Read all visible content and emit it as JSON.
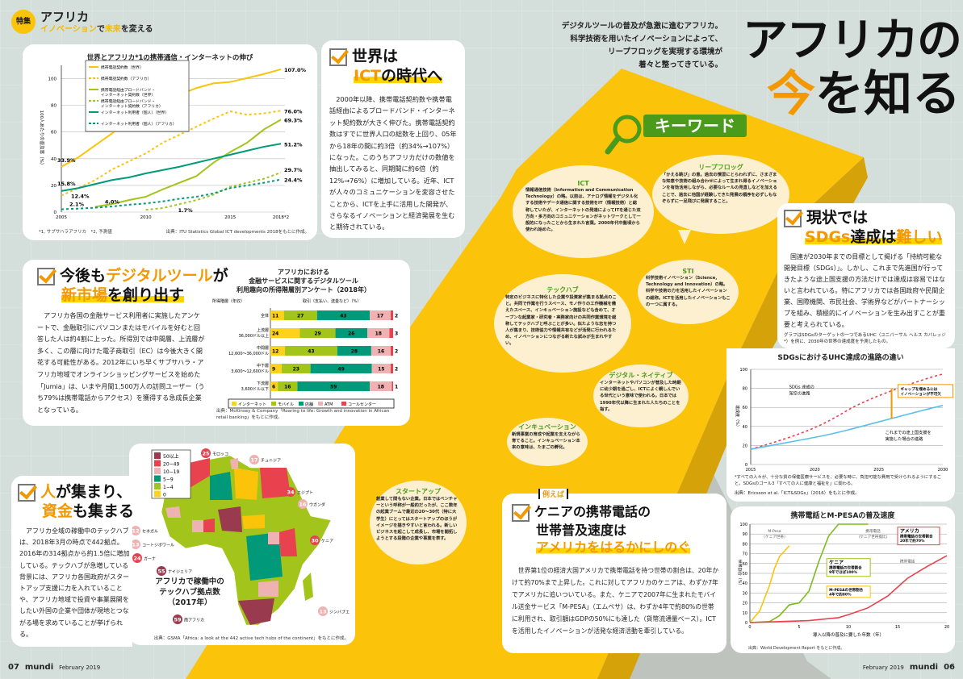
{
  "header": {
    "badge": "特集",
    "title": "アフリカ",
    "subtitle_part1": "イノベーション",
    "subtitle_part2": "で",
    "subtitle_part3": "未来",
    "subtitle_part4": "を変える"
  },
  "hero": {
    "lead_lines": [
      "デジタルツールの普及が急激に進むアフリカ。",
      "科学技術を用いたイノベーションによって、",
      "リープフロッグを実現する環境が",
      "着々と整ってきている。"
    ],
    "title_line1": "アフリカの",
    "title_accent": "今",
    "title_line2": "を知る"
  },
  "keyword": {
    "label": "キーワード"
  },
  "bubbles": [
    {
      "title": "ICT",
      "body": "情報通信技術（Information and Communication Technology）の略。以前は、アナログ情報をデジタル化する技術やデータ通信に関する技術をIT（情報技術）と総称していたが、インターネットの発達によってITを通じた双方向・多方向のコミュニケーションがネットワークとして一般的になったことから生まれた言葉。2000年代中盤頃から使われ始めた。"
    },
    {
      "title": "リープフロッグ",
      "body": "「かえる跳び」の意。過去の慣習にとらわれずに、さまざまな知恵や技術の組み合わせによって生まれ得るイノベーションを有効活用しながら、必要なルールの見直しなどを加えることで、過去に他国が経験してきた発展の順序を必ずしもなぞらずに一足飛びに発展すること。"
    },
    {
      "title": "STI",
      "body": "科学技術イノベーション（Science, Technology and Innovation）の略。科学や技術の力を活用したイノベーションの総称。ICTを活用したイノベーションもこの一つに属する。"
    },
    {
      "title": "テックハブ",
      "body": "特定のビジネスに特化した企業や投資家が集まる拠点のこと。共同で作業を行うスペース、モノ作りの工作機械を備えたスペース、インキュベーション施設なども含めて、オープンな起業家・研究者・実務家向けの共同作業環境を総称してテックハブと呼ぶことが多い。似たような志を持つ人が集まり、技術協力や情報共有などが活発に行われるため、イノベーションにつながる新たな試みが生まれやすい。"
    },
    {
      "title": "デジタル・ネイティブ",
      "body": "インターネットやパソコンが普及した時期に幼少期を過ごし、ICTによく親しんでいる世代という意味で使われる。日本では1990年代以降に生まれた人たちのことを指す。"
    },
    {
      "title": "インキュベーション",
      "body": "新規事業の育成や起業を支えながら育てること。インキュベーション本来の意味は、たまごの孵化。"
    },
    {
      "title": "スタートアップ",
      "body": "創業して間もない企業。日本ではベンチャーという呼称が一般的だったが、ここ数年の起業ブームで最近の20〜30代（特に大学生）にとってはスタートアップのほうがイメージを描きやすいと言われる。新しいビジネスを起こして成長し、市場を開拓しようとする段階の企業や事業を表す。"
    }
  ],
  "sec_ict": {
    "title1": "世界は",
    "title_hl": "ICT",
    "title2": "の時代へ",
    "body": "2000年以降、携帯電話契約数や携帯電話経由によるブロードバンド・インターネット契約数が大きく伸びた。携帯電話契約数はすでに世界人口の総数を上回り、05年から18年の間に約3倍（約34%→107%）になった。このうちアフリカだけの数値を抽出してみると、同期間に約6倍（約12%→76%）に増加している。近年、ICTが人々のコミュニケーションを変容させたことから、ICTを上手に活用した開発が、さらなるイノベーションと経済発展を生むと期待されている。"
  },
  "sec_digital": {
    "title1": "今後も",
    "title_hl": "デジタルツール",
    "title2": "が",
    "title3_hl": "新市場",
    "title4": "を創り出す",
    "body": "アフリカ各国の金融サービス利用者に実施したアンケートで、金融取引にパソコンまたはモバイルを好むと回答した人は約4割に上った。所得別では中間層、上流層が多く、この層に向けた電子商取引（EC）は今後大きく開花する可能性がある。2012年にいち早くサブサハラ・アフリカ地域でオンラインショッピングサービスを始めた「Jumia」は、いまや月間1,500万人の訪問ユーザー（うち79%は携帯電話からアクセス）を獲得する急成長企業となっている。"
  },
  "sec_people": {
    "title_a": "人",
    "title1": "が集まり、",
    "title_b": "資金",
    "title2": "も集まる",
    "body": "アフリカ全域の稼働中のテックハブは、2018年3月の時点で442拠点。2016年の314拠点から約1.5倍に増加している。テックハブが急増している背景には、アフリカ各国政府がスタートアップ支援に力を入れていることや、アフリカ地域で投資や事業展開をしたい外国の企業や団体が現地とつながる場を求めていることが挙げられる。"
  },
  "sec_sdgs": {
    "title1": "現状では",
    "title_hl": "SDGs",
    "title2": "達成は",
    "title_accent": "難しい",
    "body": "国連が2030年までの目標として掲げる「持続可能な開発目標（SDGs）」。しかし、これまで先進国が行ってきたような途上国支援の方法だけでは達成は容易ではないと言われている。特にアフリカでは各国政府や民間企業、国際機関、市民社会、学術界などがパートナーシップを組み、積極的にイノベーションを生み出すことが重要と考えられている。",
    "note": "グラフはSDGsのターゲットの一つであるUHC（ユニバーサル ヘルス カバレッジ*）を例に、2030年の世界の達成度を予測したもの。"
  },
  "sec_kenya": {
    "tag": "例えば",
    "title1": "ケニアの携帯電話の",
    "title2": "世帯普及速度は",
    "title_hl": "アメリカをはるかにしのぐ",
    "body": "世界第1位の経済大国アメリカで携帯電話を持つ世帯の割合は、20年かけて約70%まで上昇した。これに対してアフリカのケニアは、わずか7年でアメリカに追いついている。また、ケニアで2007年に生まれたモバイル送金サービス「M-PESA」（エムペサ）は、わずか4年で約80%の世帯に利用され、取引額はGDPの50%にも達した（貨幣流通量ベース）。ICTを活用したイノベーションが活発な経済活動を牽引している。"
  },
  "footer": {
    "left_page": "07",
    "left_brand": "mundi",
    "left_date": "February 2019",
    "right_date": "February 2019",
    "right_brand": "mundi",
    "right_page": "06"
  },
  "colors": {
    "yellow": "#fcc30b",
    "orange": "#f39800",
    "green": "#4a9a1c",
    "teal": "#009a7a",
    "lime": "#a3c41a",
    "red": "#e8424e",
    "pink": "#efb2b3",
    "maroon": "#9a3a4e"
  },
  "chart_data": [
    {
      "type": "line",
      "title": "世界とアフリカ*1の携帯通信・インターネットの伸び",
      "ylabel": "100人あたりの普及率（%）",
      "x": [
        2005,
        2006,
        2007,
        2008,
        2009,
        2010,
        2011,
        2012,
        2013,
        2014,
        2015,
        2016,
        2017,
        2018
      ],
      "xticks": [
        "2005",
        "2010",
        "2015",
        "2018*2"
      ],
      "yticks": [
        "0",
        "20",
        "40",
        "60",
        "80",
        "100"
      ],
      "ylim": [
        0,
        110
      ],
      "series": [
        {
          "name": "携帯電話契約数（世界）",
          "style": "solid",
          "color": "#fcc30b",
          "values": [
            33.9,
            41,
            50,
            59,
            68,
            76,
            83,
            88,
            93,
            96.5,
            97.5,
            100.5,
            103.5,
            107.0
          ]
        },
        {
          "name": "携帯電話契約数（アフリカ）",
          "style": "dashed",
          "color": "#fcc30b",
          "values": [
            12.4,
            18,
            24,
            32,
            38,
            44,
            52,
            58,
            64,
            70,
            75.5,
            73,
            74,
            76.0
          ]
        },
        {
          "name": "携帯電話経由ブロードバンド・インターネット契約数（世界）",
          "style": "solid",
          "color": "#a3c41a",
          "values": [
            null,
            null,
            4.0,
            6,
            9,
            11.5,
            17,
            22,
            27,
            37,
            45,
            52,
            62,
            69.3
          ]
        },
        {
          "name": "携帯電話経由ブロードバンド・インターネット契約数（アフリカ）",
          "style": "dashed",
          "color": "#a3c41a",
          "values": [
            null,
            null,
            null,
            null,
            null,
            1.7,
            3,
            6,
            9,
            13,
            19,
            22,
            25,
            29.7
          ]
        },
        {
          "name": "インターネット利用者（個人）（世界）",
          "style": "solid",
          "color": "#009a7a",
          "values": [
            15.8,
            18,
            21,
            24,
            26,
            29,
            31.5,
            34,
            37,
            40,
            43,
            46,
            49,
            51.2
          ]
        },
        {
          "name": "インターネット利用者（個人）（アフリカ）",
          "style": "dashed",
          "color": "#009a7a",
          "values": [
            2.1,
            2.6,
            3.3,
            4.2,
            5.5,
            6.5,
            8,
            10,
            11.5,
            14,
            18,
            20,
            22,
            24.4
          ]
        }
      ],
      "labels": [
        "107.0%",
        "76.0%",
        "69.3%",
        "51.2%",
        "29.7%",
        "24.4%",
        "33.9%",
        "15.8%",
        "12.4%",
        "4.0%",
        "2.1%",
        "1.7%"
      ],
      "footnotes": [
        "*1, サブサハラアフリカ",
        "*2, 予測値"
      ],
      "source": "出典：ITU Statistics Global ICT developments 2018をもとに作成。"
    },
    {
      "type": "bar",
      "stacked": true,
      "title_lines": [
        "アフリカにおける",
        "金融サービスに関するデジタルツール",
        "利用趣向の所得階層別アンケート（2018年）"
      ],
      "row_header": "所得階層（年収）",
      "col_header": "取引（支払い、送金など）（%）",
      "categories": [
        [
          "全体"
        ],
        [
          "上流層",
          "36,000ドル以上"
        ],
        [
          "中間層",
          "12,600〜36,000ドル"
        ],
        [
          "中下層",
          "3,600〜12,600ドル"
        ],
        [
          "下流層",
          "3,600ドル以下"
        ]
      ],
      "series": [
        {
          "name": "インターネット",
          "color": "#fcd21c",
          "values": [
            11,
            24,
            12,
            9,
            6
          ]
        },
        {
          "name": "モバイル",
          "color": "#a3c41a",
          "values": [
            27,
            29,
            43,
            23,
            16
          ]
        },
        {
          "name": "店舗",
          "color": "#009a7a",
          "values": [
            43,
            26,
            28,
            49,
            59
          ]
        },
        {
          "name": "ATM",
          "color": "#efb2b3",
          "values": [
            17,
            18,
            16,
            15,
            18
          ]
        },
        {
          "name": "コールセンター",
          "color": "#e8424e",
          "values": [
            2,
            3,
            2,
            2,
            1
          ]
        }
      ],
      "source": "出典：McKinsey & Company「Roaring to life: Growth and innovation in African retail banking」をもとに作成。"
    },
    {
      "type": "map",
      "title_lines": [
        "アフリカで稼働中の",
        "テックハブ拠点数",
        "（2017年）"
      ],
      "legend": [
        {
          "label": "50以上",
          "color": "#9a3a4e"
        },
        {
          "label": "20−49",
          "color": "#e8424e"
        },
        {
          "label": "10−19",
          "color": "#efb2b3"
        },
        {
          "label": "5−9",
          "color": "#009a7a"
        },
        {
          "label": "1−4",
          "color": "#a3c41a"
        },
        {
          "label": "0",
          "color": "#fcd21c"
        }
      ],
      "countries": [
        {
          "name": "モロッコ",
          "value": 25
        },
        {
          "name": "チュニジア",
          "value": 17
        },
        {
          "name": "エジプト",
          "value": 34
        },
        {
          "name": "ウガンダ",
          "value": 16
        },
        {
          "name": "ケニア",
          "value": 30
        },
        {
          "name": "セネガル",
          "value": 12
        },
        {
          "name": "コートジボワール",
          "value": 13
        },
        {
          "name": "ガーナ",
          "value": 24
        },
        {
          "name": "ナイジェリア",
          "value": 55
        },
        {
          "name": "ジンバブエ",
          "value": 13
        },
        {
          "name": "南アフリカ",
          "value": 59
        }
      ],
      "source": "出典：GSMA「Africa: a look at the 442 active tech hubs of the continent」をもとに作成。"
    },
    {
      "type": "line",
      "title": "SDGsにおけるUHC達成の進路の違い",
      "ylabel": "達成度（%）",
      "x": [
        2015,
        2020,
        2025,
        2030
      ],
      "ylim": [
        0,
        100
      ],
      "yticks": [
        "0",
        "20",
        "40",
        "60",
        "80",
        "100"
      ],
      "xticks": [
        "2015",
        "2020",
        "2025",
        "2030"
      ],
      "series": [
        {
          "name": "SDGs 達成の架空の進路",
          "style": "dashed",
          "color": "#e8424e",
          "values": [
            16,
            33,
            80,
            95
          ]
        },
        {
          "name": "これまでの途上国支援を実施した場合の進路",
          "style": "solid",
          "color": "#5bbfe8",
          "values": [
            16,
            27,
            45,
            62
          ]
        }
      ],
      "annotation_lines": [
        "ギャップを埋めるには",
        "イノベーションが不可欠"
      ],
      "label_sdgs": [
        "SDGs 達成の",
        "架空の進路"
      ],
      "label_base": [
        "これまでの途上国支援を",
        "実施した場合の進路"
      ],
      "footnote": "*すべての人々が、十分な質の保健医療サービスを、必要な時に、負担可能な費用で受けられるようにすること。SDGsのゴール3「すべての人に健康と福祉を」に関わる。",
      "source": "出典：Ericsson et al.「ICT&SDGs」（2016）をもとに作成。"
    },
    {
      "type": "line",
      "title": "携帯電話とM-PESAの普及速度",
      "xlabel": "導入以降の普及に要した年数（年）",
      "ylabel": "世帯割合（%）",
      "xlim": [
        0,
        20
      ],
      "ylim": [
        0,
        100
      ],
      "xticks": [
        "0",
        "5",
        "10",
        "15",
        "20"
      ],
      "yticks": [
        "0",
        "10",
        "20",
        "30",
        "40",
        "50",
        "60",
        "70",
        "80",
        "90",
        "100"
      ],
      "series": [
        {
          "name": "M-Pesa（ケニア世帯）",
          "color": "#fcc30b",
          "points": [
            [
              0,
              0
            ],
            [
              1,
              12
            ],
            [
              2,
              38
            ],
            [
              2.5,
              55
            ],
            [
              3,
              67
            ],
            [
              4,
              78
            ]
          ]
        },
        {
          "name": "携帯電話（ケニア世帯換比）",
          "color": "#7dbb1c",
          "points": [
            [
              0,
              0
            ],
            [
              2,
              1
            ],
            [
              3,
              7
            ],
            [
              4,
              18
            ],
            [
              5,
              20
            ],
            [
              6,
              32
            ],
            [
              7,
              62
            ],
            [
              8,
              88
            ],
            [
              9,
              100
            ],
            [
              12,
              100
            ]
          ]
        },
        {
          "name": "携帯電話",
          "color": "#e8424e",
          "points": [
            [
              0,
              0
            ],
            [
              3,
              1
            ],
            [
              6,
              2
            ],
            [
              9,
              5
            ],
            [
              10,
              8
            ],
            [
              12,
              15
            ],
            [
              14,
              27
            ],
            [
              16,
              45
            ],
            [
              18,
              57
            ],
            [
              20,
              68
            ]
          ]
        }
      ],
      "callouts": [
        {
          "title": "アメリカ",
          "lines": [
            "携帯電話の世帯割合",
            "20年で約70%"
          ]
        },
        {
          "title": "ケニア",
          "lines": [
            "携帯電話の世帯割合",
            "9年でほぼ100%"
          ]
        },
        {
          "lines": [
            "M-PESAの世帯割合",
            "4年で約80%"
          ]
        }
      ],
      "labels": {
        "mpesa": [
          "M-Pesa",
          "（ケニア世帯）"
        ],
        "kenya": [
          "携帯電話",
          "（ケニア世帯換比）"
        ],
        "usa": "携帯電話"
      },
      "source": "出典：World Development Report をもとに作成。"
    }
  ]
}
